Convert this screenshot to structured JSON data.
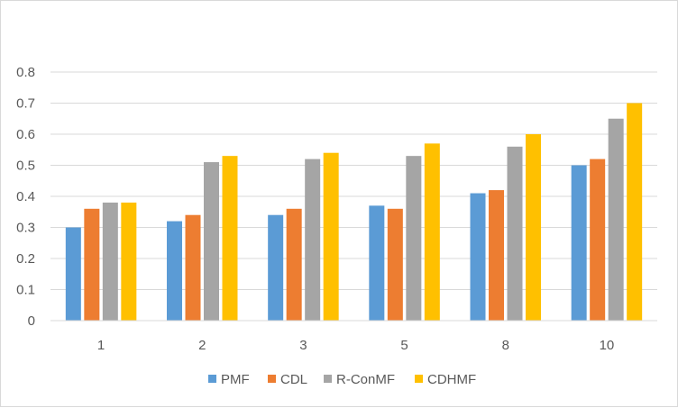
{
  "chart_data": {
    "type": "bar",
    "title": "",
    "xlabel": "",
    "ylabel": "",
    "categories": [
      "1",
      "2",
      "3",
      "5",
      "8",
      "10"
    ],
    "series": [
      {
        "name": "PMF",
        "values": [
          0.3,
          0.32,
          0.34,
          0.37,
          0.41,
          0.5
        ],
        "color": "#5B9BD5"
      },
      {
        "name": "CDL",
        "values": [
          0.36,
          0.34,
          0.36,
          0.36,
          0.42,
          0.52
        ],
        "color": "#ED7D31"
      },
      {
        "name": "R-ConMF",
        "values": [
          0.38,
          0.51,
          0.52,
          0.53,
          0.56,
          0.65
        ],
        "color": "#A5A5A5"
      },
      {
        "name": "CDHMF",
        "values": [
          0.38,
          0.53,
          0.54,
          0.57,
          0.6,
          0.7
        ],
        "color": "#FFC000"
      }
    ],
    "ylim": [
      0,
      0.8
    ],
    "yticks": [
      "0",
      "0.1",
      "0.2",
      "0.3",
      "0.4",
      "0.5",
      "0.6",
      "0.7",
      "0.8"
    ],
    "grid": true,
    "legend_position": "bottom"
  }
}
